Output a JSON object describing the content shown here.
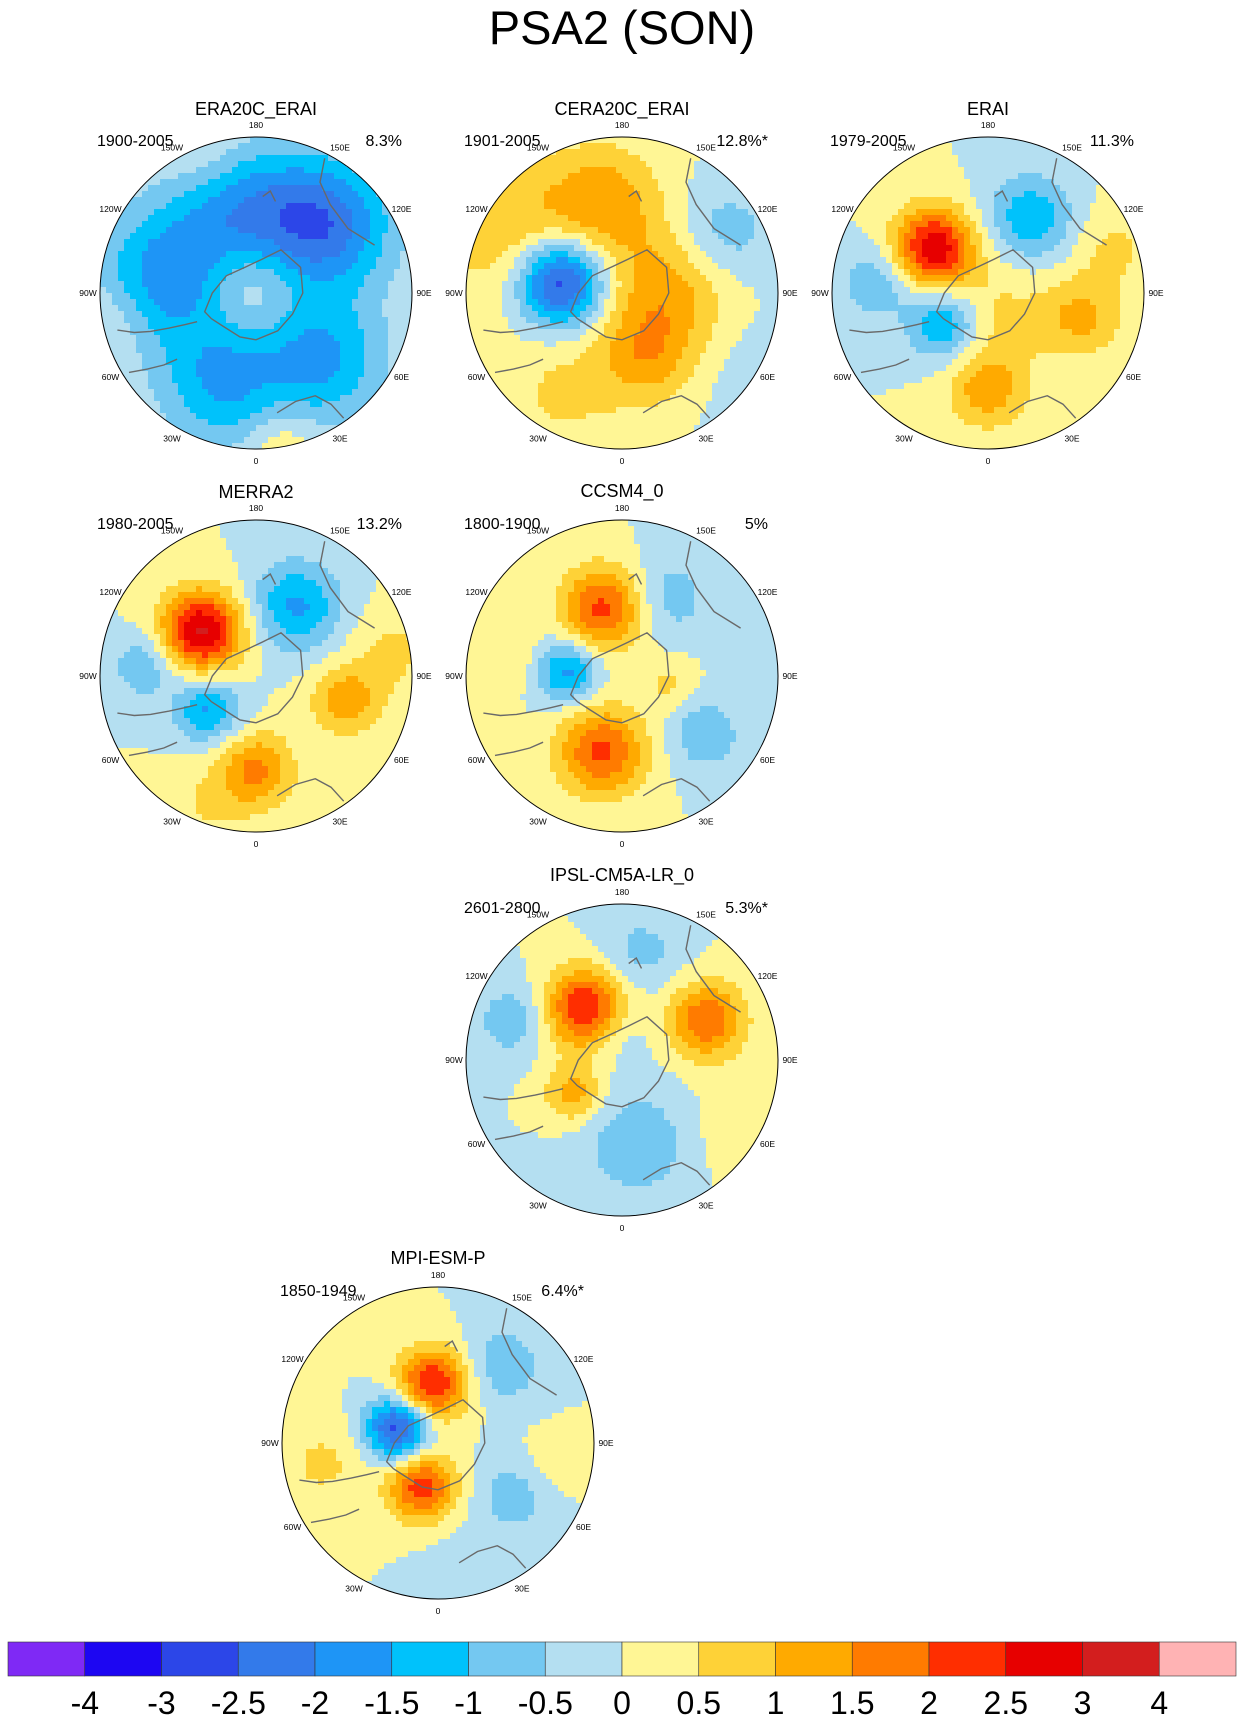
{
  "title": "PSA2 (SON)",
  "colors": {
    "land": "#696969",
    "disk_edge": "#000000",
    "levels": [
      "#7f29f5",
      "#1d06f2",
      "#2c46e8",
      "#337aea",
      "#1e95f6",
      "#00c2fb",
      "#74c8f1",
      "#b4dff1",
      "#fff695",
      "#fed237",
      "#ffaa00",
      "#ff7b00",
      "#ff2e00",
      "#e70000",
      "#d31e1e",
      "#ffb3b4"
    ]
  },
  "chart_data": {
    "type": "polar contour map",
    "projection": "south polar stereographic",
    "variable": "PSA2 pattern (SON)",
    "colorbar": {
      "tick_labels": [
        "-4",
        "-3",
        "-2.5",
        "-2",
        "-1.5",
        "-1",
        "-0.5",
        "0",
        "0.5",
        "1",
        "1.5",
        "2",
        "2.5",
        "3",
        "4"
      ],
      "levels": [
        -4,
        -3,
        -2.5,
        -2,
        -1.5,
        -1,
        -0.5,
        0,
        0.5,
        1,
        1.5,
        2,
        2.5,
        3,
        4
      ]
    },
    "longitude_labels": [
      "0",
      "30E",
      "60E",
      "90E",
      "120E",
      "150E",
      "180",
      "150W",
      "120W",
      "90W",
      "60W",
      "30W"
    ],
    "panels": [
      {
        "name": "ERA20C_ERAI",
        "period": "1900-2005",
        "variance": "8.3%",
        "field": [
          {
            "lon": 135,
            "r": 0.62,
            "amp": -2.3,
            "w": 0.3
          },
          {
            "lon": -100,
            "r": 0.58,
            "amp": -1.8,
            "w": 0.32
          },
          {
            "lon": -20,
            "r": 0.62,
            "amp": -1.5,
            "w": 0.28
          },
          {
            "lon": 45,
            "r": 0.6,
            "amp": -1.6,
            "w": 0.28
          },
          {
            "lon": -170,
            "r": 0.55,
            "amp": -1.5,
            "w": 0.3
          },
          {
            "lon": -140,
            "r": 0.08,
            "amp": 0.8,
            "w": 0.2
          },
          {
            "lon": -80,
            "r": 0.95,
            "amp": 0.5,
            "w": 0.2
          },
          {
            "lon": 10,
            "r": 0.95,
            "amp": 0.6,
            "w": 0.15
          },
          {
            "lon": -160,
            "r": 0.95,
            "amp": 0.4,
            "w": 0.2
          }
        ]
      },
      {
        "name": "CERA20C_ERAI",
        "period": "1901-2005",
        "variance": "12.8%*",
        "field": [
          {
            "lon": -100,
            "r": 0.4,
            "amp": -3.2,
            "w": 0.2
          },
          {
            "lon": 90,
            "r": 0.3,
            "amp": 1.3,
            "w": 0.3
          },
          {
            "lon": -120,
            "r": 0.75,
            "amp": 1,
            "w": 0.35
          },
          {
            "lon": -170,
            "r": 0.6,
            "amp": 1.2,
            "w": 0.25
          },
          {
            "lon": 20,
            "r": 0.45,
            "amp": 1.1,
            "w": 0.22
          },
          {
            "lon": 120,
            "r": 0.75,
            "amp": -0.9,
            "w": 0.22
          },
          {
            "lon": -30,
            "r": 0.75,
            "amp": 0.6,
            "w": 0.25
          },
          {
            "lon": 60,
            "r": 0.85,
            "amp": -0.3,
            "w": 0.3
          }
        ]
      },
      {
        "name": "ERAI",
        "period": "1979-2005",
        "variance": "11.3%",
        "field": [
          {
            "lon": -130,
            "r": 0.45,
            "amp": 2.9,
            "w": 0.18
          },
          {
            "lon": -55,
            "r": 0.35,
            "amp": -1.6,
            "w": 0.16
          },
          {
            "lon": 0,
            "r": 0.62,
            "amp": 1.3,
            "w": 0.18
          },
          {
            "lon": 75,
            "r": 0.62,
            "amp": 1.1,
            "w": 0.18
          },
          {
            "lon": 150,
            "r": 0.55,
            "amp": -1.4,
            "w": 0.2
          },
          {
            "lon": -95,
            "r": 0.72,
            "amp": -1,
            "w": 0.16
          },
          {
            "lon": 30,
            "r": 0.15,
            "amp": 0.6,
            "w": 0.25
          },
          {
            "lon": 110,
            "r": 0.85,
            "amp": 0.6,
            "w": 0.2
          }
        ]
      },
      {
        "name": "MERRA2",
        "period": "1980-2005",
        "variance": "13.2%",
        "field": [
          {
            "lon": -130,
            "r": 0.45,
            "amp": 3.1,
            "w": 0.18
          },
          {
            "lon": -55,
            "r": 0.38,
            "amp": -1.6,
            "w": 0.15
          },
          {
            "lon": 0,
            "r": 0.6,
            "amp": 1.6,
            "w": 0.17
          },
          {
            "lon": 75,
            "r": 0.6,
            "amp": 1.3,
            "w": 0.16
          },
          {
            "lon": 150,
            "r": 0.52,
            "amp": -1.6,
            "w": 0.2
          },
          {
            "lon": -95,
            "r": 0.72,
            "amp": -1,
            "w": 0.14
          },
          {
            "lon": 100,
            "r": 0.9,
            "amp": 0.6,
            "w": 0.2
          },
          {
            "lon": -20,
            "r": 0.9,
            "amp": 0.5,
            "w": 0.2
          }
        ]
      },
      {
        "name": "CCSM4_0",
        "period": "1800-1900",
        "variance": "5%",
        "field": [
          {
            "lon": -15,
            "r": 0.5,
            "amp": 2.1,
            "w": 0.2
          },
          {
            "lon": -165,
            "r": 0.45,
            "amp": 2.2,
            "w": 0.19
          },
          {
            "lon": -95,
            "r": 0.35,
            "amp": -1.7,
            "w": 0.14
          },
          {
            "lon": 55,
            "r": 0.65,
            "amp": -0.9,
            "w": 0.17
          },
          {
            "lon": 150,
            "r": 0.58,
            "amp": -0.8,
            "w": 0.2
          },
          {
            "lon": 80,
            "r": 0.3,
            "amp": 0.6,
            "w": 0.12
          },
          {
            "lon": -100,
            "r": 0.75,
            "amp": 0.5,
            "w": 0.15
          }
        ]
      },
      {
        "name": "IPSL-CM5A-LR_0",
        "period": "2601-2800",
        "variance": "5.3%*",
        "field": [
          {
            "lon": -145,
            "r": 0.4,
            "amp": 2.7,
            "w": 0.18
          },
          {
            "lon": 115,
            "r": 0.6,
            "amp": 2,
            "w": 0.17
          },
          {
            "lon": -55,
            "r": 0.38,
            "amp": 1.3,
            "w": 0.13
          },
          {
            "lon": 10,
            "r": 0.55,
            "amp": -0.9,
            "w": 0.25
          },
          {
            "lon": -110,
            "r": 0.75,
            "amp": -0.9,
            "w": 0.16
          },
          {
            "lon": 170,
            "r": 0.7,
            "amp": -0.7,
            "w": 0.18
          },
          {
            "lon": -165,
            "r": 0.2,
            "amp": -0.6,
            "w": 0.15
          },
          {
            "lon": 60,
            "r": 0.9,
            "amp": 0.5,
            "w": 0.2
          }
        ]
      },
      {
        "name": "MPI-ESM-P",
        "period": "1850-1949",
        "variance": "6.4%*",
        "field": [
          {
            "lon": -20,
            "r": 0.3,
            "amp": 2.3,
            "w": 0.15
          },
          {
            "lon": -175,
            "r": 0.38,
            "amp": 2.6,
            "w": 0.16
          },
          {
            "lon": -110,
            "r": 0.28,
            "amp": -2.8,
            "w": 0.14
          },
          {
            "lon": 55,
            "r": 0.6,
            "amp": -0.8,
            "w": 0.18
          },
          {
            "lon": 140,
            "r": 0.65,
            "amp": -0.9,
            "w": 0.18
          },
          {
            "lon": 10,
            "r": 0.85,
            "amp": -0.5,
            "w": 0.15
          },
          {
            "lon": 80,
            "r": 0.75,
            "amp": 0.4,
            "w": 0.15
          },
          {
            "lon": -80,
            "r": 0.75,
            "amp": 0.6,
            "w": 0.2
          }
        ]
      }
    ]
  }
}
